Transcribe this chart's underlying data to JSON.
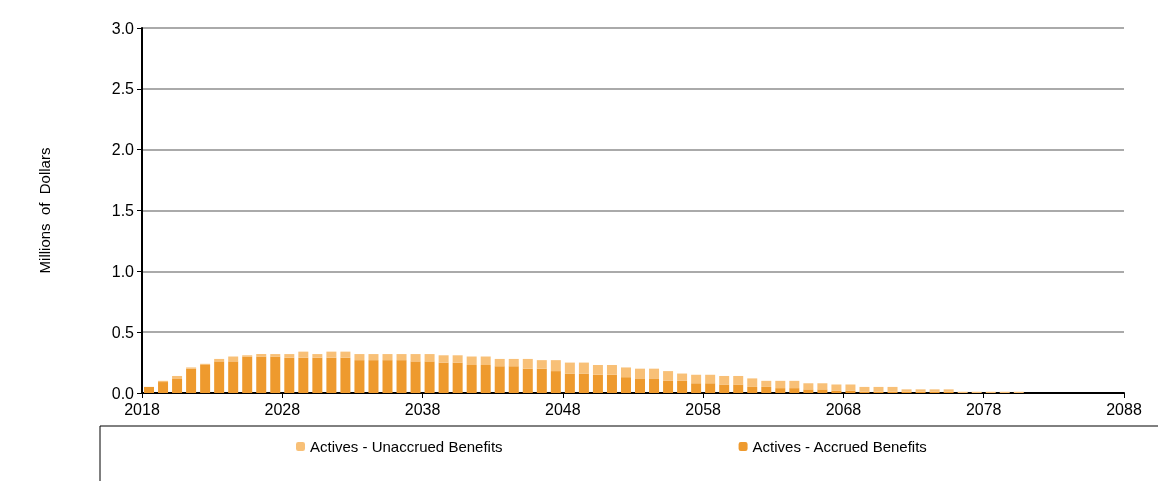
{
  "chart_data": {
    "type": "bar",
    "stacked": true,
    "ylabel": "Millions  of  Dollars",
    "x": [
      2018.5,
      2019.5,
      2020.5,
      2021.5,
      2022.5,
      2023.5,
      2024.5,
      2025.5,
      2026.5,
      2027.5,
      2028.5,
      2029.5,
      2030.5,
      2031.5,
      2032.5,
      2033.5,
      2034.5,
      2035.5,
      2036.5,
      2037.5,
      2038.5,
      2039.5,
      2040.5,
      2041.5,
      2042.5,
      2043.5,
      2044.5,
      2045.5,
      2046.5,
      2047.5,
      2048.5,
      2049.5,
      2050.5,
      2051.5,
      2052.5,
      2053.5,
      2054.5,
      2055.5,
      2056.5,
      2057.5,
      2058.5,
      2059.5,
      2060.5,
      2061.5,
      2062.5,
      2063.5,
      2064.5,
      2065.5,
      2066.5,
      2067.5,
      2068.5,
      2069.5,
      2070.5,
      2071.5,
      2072.5,
      2073.5,
      2074.5,
      2075.5,
      2076.5,
      2077.5,
      2078.5,
      2079.5,
      2080.5,
      2081.5,
      2082.5,
      2083.5,
      2084.5,
      2085.5,
      2086.5,
      2087.5
    ],
    "series": [
      {
        "name": "Actives - Accrued Benefits",
        "color": "#ee9a2e",
        "values": [
          0.05,
          0.09,
          0.12,
          0.2,
          0.23,
          0.26,
          0.26,
          0.3,
          0.3,
          0.3,
          0.29,
          0.29,
          0.29,
          0.29,
          0.29,
          0.27,
          0.27,
          0.27,
          0.27,
          0.26,
          0.26,
          0.25,
          0.25,
          0.23,
          0.23,
          0.22,
          0.22,
          0.2,
          0.2,
          0.18,
          0.16,
          0.16,
          0.15,
          0.15,
          0.13,
          0.12,
          0.12,
          0.1,
          0.1,
          0.08,
          0.08,
          0.07,
          0.07,
          0.05,
          0.05,
          0.04,
          0.04,
          0.03,
          0.03,
          0.02,
          0.02,
          0.01,
          0.01,
          0.01,
          0.01,
          0.01,
          0.01,
          0.01,
          0,
          0,
          0,
          0,
          0,
          0,
          0,
          0,
          0,
          0,
          0,
          0
        ]
      },
      {
        "name": "Actives - Unaccrued Benefits",
        "color": "#f8c077",
        "values": [
          0,
          0.01,
          0.02,
          0.01,
          0.01,
          0.02,
          0.04,
          0.01,
          0.02,
          0.02,
          0.03,
          0.05,
          0.03,
          0.05,
          0.05,
          0.05,
          0.05,
          0.05,
          0.05,
          0.06,
          0.06,
          0.06,
          0.06,
          0.07,
          0.07,
          0.06,
          0.06,
          0.08,
          0.07,
          0.09,
          0.09,
          0.09,
          0.08,
          0.08,
          0.08,
          0.08,
          0.08,
          0.08,
          0.06,
          0.07,
          0.07,
          0.07,
          0.07,
          0.07,
          0.05,
          0.06,
          0.06,
          0.05,
          0.05,
          0.05,
          0.05,
          0.04,
          0.04,
          0.04,
          0.02,
          0.02,
          0.02,
          0.02,
          0.01,
          0.01,
          0.01,
          0.01,
          0.01,
          0,
          0,
          0,
          0,
          0,
          0,
          0
        ]
      }
    ],
    "xlim": [
      2018,
      2088
    ],
    "xticks": [
      2018,
      2028,
      2038,
      2048,
      2058,
      2068,
      2078,
      2088
    ],
    "ylim": [
      0,
      3
    ],
    "yticks": [
      {
        "value": 0,
        "label": "0.0"
      },
      {
        "value": 0.5,
        "label": "0.5"
      },
      {
        "value": 1,
        "label": "1.0"
      },
      {
        "value": 1.5,
        "label": "1.5"
      },
      {
        "value": 2,
        "label": "2.0"
      },
      {
        "value": 2.5,
        "label": "2.5"
      },
      {
        "value": 3,
        "label": "3.0"
      }
    ],
    "grid": "y",
    "legend": "bottom"
  }
}
